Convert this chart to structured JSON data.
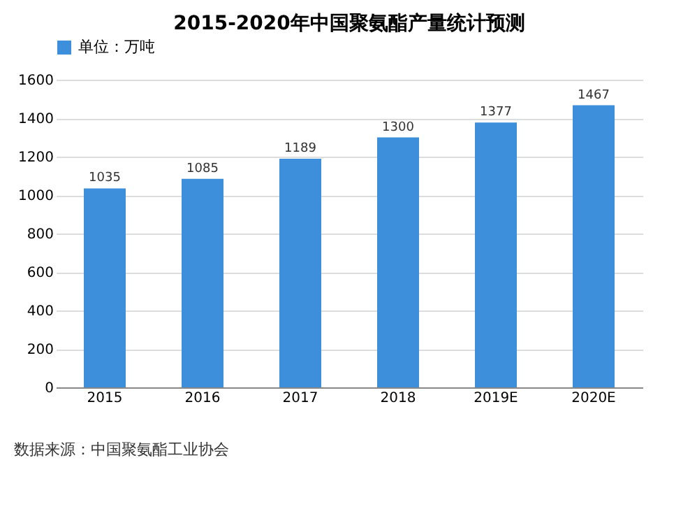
{
  "chart_data": {
    "type": "bar",
    "title": "2015-2020年中国聚氨酯产量统计预测",
    "categories": [
      "2015",
      "2016",
      "2017",
      "2018",
      "2019E",
      "2020E"
    ],
    "series": [
      {
        "name": "单位：万吨",
        "color": "#3d8fdb",
        "values": [
          1035,
          1085,
          1189,
          1300,
          1377,
          1467
        ]
      }
    ],
    "ylim": [
      0,
      1600
    ],
    "yticks": [
      0,
      200,
      400,
      600,
      800,
      1000,
      1200,
      1400,
      1600
    ],
    "grid": "y",
    "legend": "top",
    "data_labels": true,
    "annotations": [
      "数据来源：中国聚氨酯工业协会"
    ]
  }
}
